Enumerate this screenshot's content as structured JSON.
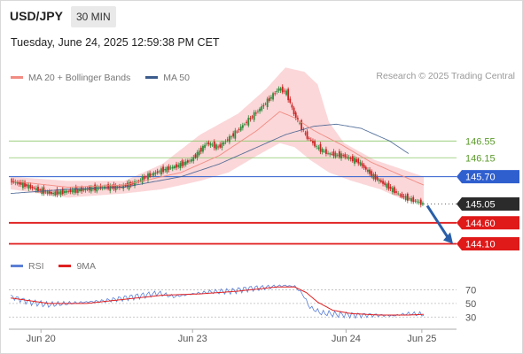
{
  "header": {
    "symbol": "USD/JPY",
    "timeframe": "30 MIN",
    "datetime": "Tuesday, June 24, 2025 12:59:38 PM CET"
  },
  "legend": {
    "ma20_label": "MA 20 + Bollinger Bands",
    "ma20_color": "#f28b82",
    "ma50_label": "MA 50",
    "ma50_color": "#3b5b8c",
    "credit": "Research © 2025 Trading Central"
  },
  "rsi_legend": {
    "rsi_label": "RSI",
    "rsi_color": "#5b7fd6",
    "ma_label": "9MA",
    "ma_color": "#e02020"
  },
  "colors": {
    "up_candle": "#2e8b3a",
    "down_candle": "#cc2222",
    "band_fill": "#f9c9cc",
    "green_level": "#8cc86a",
    "blue_level": "#2f5fcf",
    "red_level": "#e01919",
    "current_tag": "#2b2b2b",
    "arrow": "#2a5fa8"
  },
  "chart_data": {
    "type": "candlestick",
    "title": "USD/JPY",
    "timeframe": "30 MIN",
    "x_ticks": [
      "Jun 20",
      "Jun 23",
      "Jun 24",
      "Jun 25"
    ],
    "price_range": [
      143.9,
      147.8
    ],
    "levels": [
      {
        "value": 146.55,
        "label": "146.55",
        "kind": "resistance"
      },
      {
        "value": 146.15,
        "label": "146.15",
        "kind": "resistance"
      },
      {
        "value": 145.7,
        "label": "145.70",
        "kind": "pivot"
      },
      {
        "value": 145.05,
        "label": "145.05",
        "kind": "current"
      },
      {
        "value": 144.6,
        "label": "144.60",
        "kind": "support"
      },
      {
        "value": 144.1,
        "label": "144.10",
        "kind": "support"
      }
    ],
    "price_anchors": [
      [
        0,
        145.6
      ],
      [
        8,
        145.5
      ],
      [
        14,
        145.4
      ],
      [
        22,
        145.3
      ],
      [
        30,
        145.35
      ],
      [
        40,
        145.4
      ],
      [
        50,
        145.45
      ],
      [
        58,
        145.45
      ],
      [
        66,
        145.55
      ],
      [
        72,
        145.7
      ],
      [
        80,
        145.85
      ],
      [
        88,
        145.95
      ],
      [
        96,
        146.1
      ],
      [
        104,
        146.5
      ],
      [
        110,
        146.4
      ],
      [
        118,
        146.7
      ],
      [
        126,
        147.05
      ],
      [
        134,
        147.4
      ],
      [
        142,
        147.8
      ],
      [
        146,
        147.7
      ],
      [
        150,
        147.2
      ],
      [
        156,
        146.7
      ],
      [
        162,
        146.4
      ],
      [
        168,
        146.25
      ],
      [
        176,
        146.2
      ],
      [
        184,
        146.05
      ],
      [
        192,
        145.7
      ],
      [
        200,
        145.45
      ],
      [
        206,
        145.25
      ],
      [
        212,
        145.15
      ],
      [
        218,
        145.05
      ]
    ],
    "ma20_anchors": [
      [
        0,
        145.6
      ],
      [
        30,
        145.45
      ],
      [
        60,
        145.5
      ],
      [
        90,
        145.8
      ],
      [
        110,
        146.2
      ],
      [
        130,
        146.8
      ],
      [
        142,
        147.25
      ],
      [
        150,
        147.1
      ],
      [
        160,
        146.8
      ],
      [
        175,
        146.45
      ],
      [
        190,
        146.05
      ],
      [
        205,
        145.75
      ],
      [
        218,
        145.5
      ]
    ],
    "band_upper_anchors": [
      [
        0,
        145.7
      ],
      [
        30,
        145.6
      ],
      [
        60,
        145.6
      ],
      [
        80,
        146.0
      ],
      [
        100,
        146.7
      ],
      [
        120,
        147.2
      ],
      [
        135,
        147.8
      ],
      [
        145,
        148.3
      ],
      [
        155,
        148.2
      ],
      [
        162,
        147.9
      ],
      [
        168,
        147.0
      ],
      [
        176,
        146.5
      ],
      [
        192,
        146.1
      ],
      [
        205,
        145.9
      ],
      [
        218,
        145.7
      ]
    ],
    "band_lower_anchors": [
      [
        0,
        145.4
      ],
      [
        30,
        145.2
      ],
      [
        60,
        145.3
      ],
      [
        80,
        145.4
      ],
      [
        100,
        145.6
      ],
      [
        115,
        145.8
      ],
      [
        130,
        146.2
      ],
      [
        142,
        146.5
      ],
      [
        150,
        146.4
      ],
      [
        158,
        146.1
      ],
      [
        168,
        145.8
      ],
      [
        180,
        145.6
      ],
      [
        195,
        145.4
      ],
      [
        205,
        145.2
      ],
      [
        218,
        145.05
      ]
    ],
    "ma50_anchors": [
      [
        0,
        145.3
      ],
      [
        30,
        145.4
      ],
      [
        60,
        145.45
      ],
      [
        90,
        145.7
      ],
      [
        110,
        146.0
      ],
      [
        130,
        146.4
      ],
      [
        145,
        146.7
      ],
      [
        160,
        146.9
      ],
      [
        172,
        146.95
      ],
      [
        185,
        146.85
      ],
      [
        200,
        146.55
      ],
      [
        210,
        146.25
      ]
    ],
    "rsi": {
      "range": [
        20,
        90
      ],
      "ticks": [
        70,
        50,
        30
      ],
      "rsi_anchors": [
        [
          0,
          60
        ],
        [
          10,
          52
        ],
        [
          20,
          48
        ],
        [
          30,
          50
        ],
        [
          40,
          52
        ],
        [
          50,
          54
        ],
        [
          60,
          58
        ],
        [
          70,
          62
        ],
        [
          78,
          65
        ],
        [
          86,
          60
        ],
        [
          96,
          64
        ],
        [
          106,
          67
        ],
        [
          116,
          68
        ],
        [
          126,
          72
        ],
        [
          136,
          74
        ],
        [
          144,
          76
        ],
        [
          150,
          75
        ],
        [
          154,
          64
        ],
        [
          158,
          44
        ],
        [
          164,
          36
        ],
        [
          172,
          34
        ],
        [
          182,
          33
        ],
        [
          192,
          33
        ],
        [
          202,
          32
        ],
        [
          210,
          35
        ],
        [
          218,
          34
        ]
      ],
      "ma_anchors": [
        [
          0,
          58
        ],
        [
          20,
          50
        ],
        [
          40,
          50
        ],
        [
          60,
          56
        ],
        [
          80,
          62
        ],
        [
          100,
          64
        ],
        [
          120,
          68
        ],
        [
          140,
          74
        ],
        [
          150,
          74
        ],
        [
          156,
          66
        ],
        [
          162,
          52
        ],
        [
          170,
          40
        ],
        [
          180,
          35
        ],
        [
          195,
          33
        ],
        [
          210,
          33
        ],
        [
          218,
          34
        ]
      ]
    },
    "forecast_arrow": {
      "from": 145.05,
      "to": 144.1
    }
  }
}
